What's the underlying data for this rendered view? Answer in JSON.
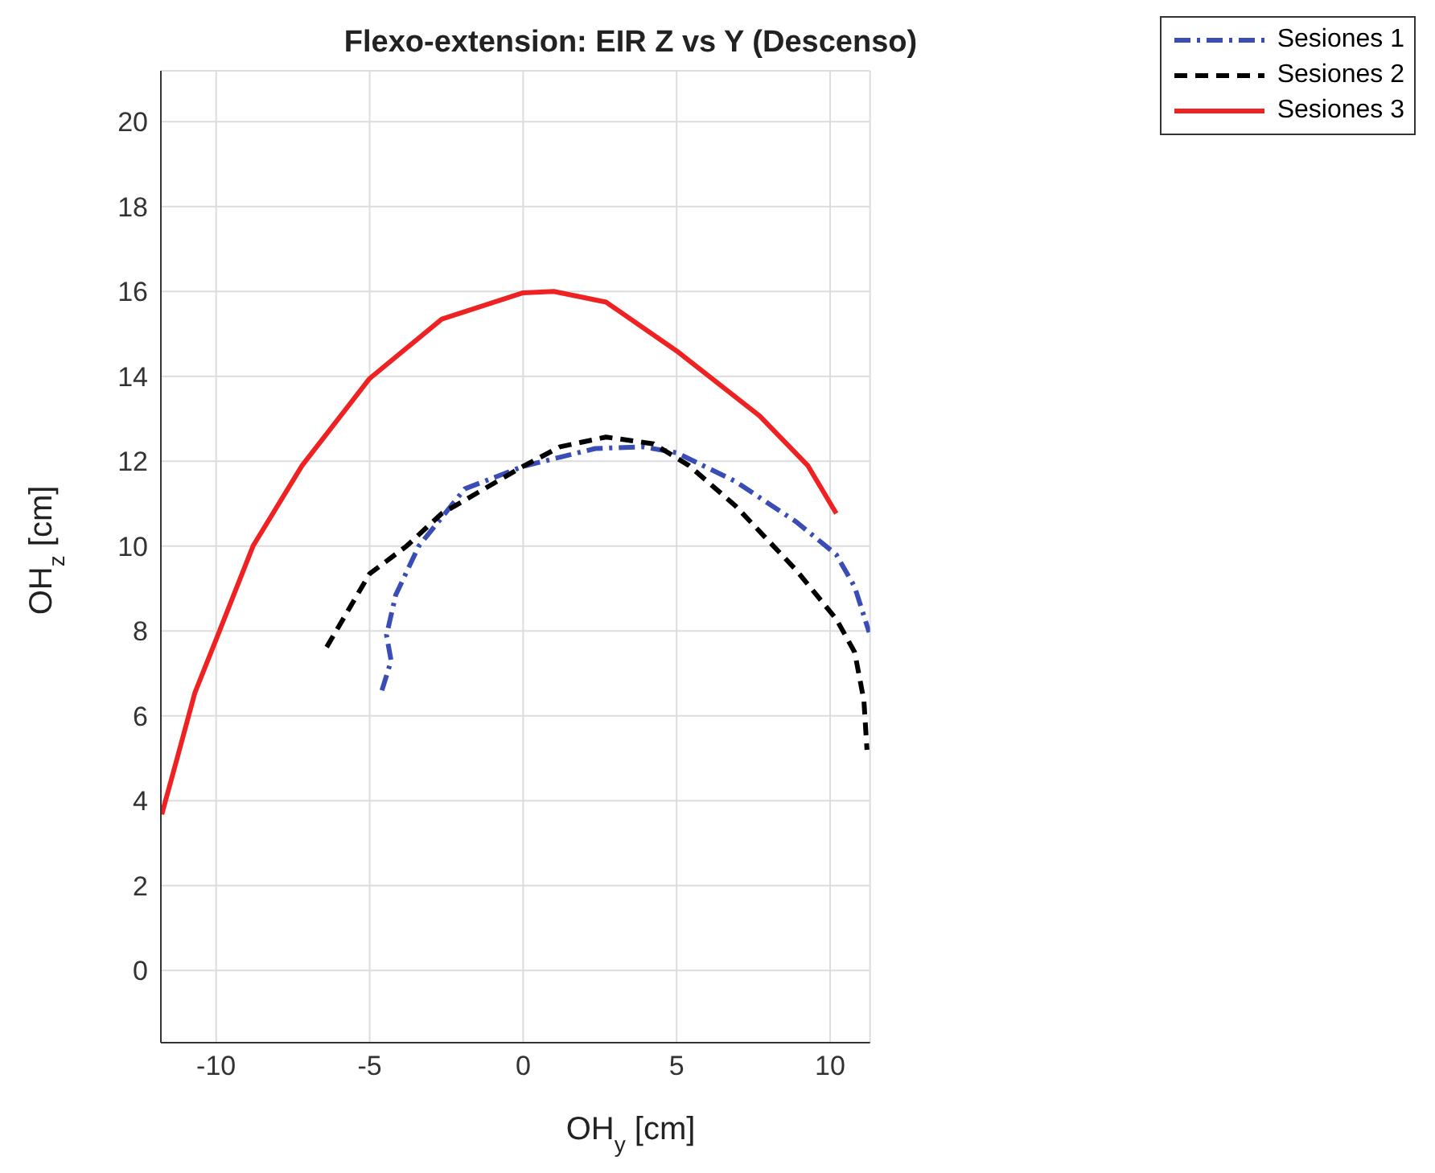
{
  "chart_data": {
    "type": "line",
    "title": "Flexo-extension: EIR Z vs Y (Descenso)",
    "xlabel": "OH$_{y}$ [cm]",
    "ylabel": "OH$_{z}$ [cm]",
    "xlim": [
      -11.8,
      11.3
    ],
    "ylim": [
      -1.7,
      21.2
    ],
    "xticks": [
      -10,
      -5,
      0,
      5,
      10
    ],
    "yticks": [
      0,
      2,
      4,
      6,
      8,
      10,
      12,
      14,
      16,
      18,
      20
    ],
    "grid": true,
    "legend": "top right",
    "marker": "none",
    "series": [
      {
        "name": "Sesiones 1",
        "color": "#3a4db5",
        "line_style": "dashdot",
        "x": [
          -4.6,
          -4.3,
          -4.45,
          -4.15,
          -3.4,
          -1.9,
          0,
          2.35,
          3.9,
          5.0,
          6.9,
          8.9,
          10.2,
          10.8,
          11.27
        ],
        "values": [
          6.6,
          7.3,
          7.9,
          8.85,
          10.0,
          11.35,
          11.88,
          12.3,
          12.34,
          12.2,
          11.53,
          10.57,
          9.8,
          9.04,
          7.97
        ]
      },
      {
        "name": "Sesiones 2",
        "color": "#000000",
        "line_style": "dashed",
        "x": [
          -6.4,
          -5,
          -3.8,
          -2.65,
          0,
          1.2,
          2.7,
          4.25,
          5.4,
          6.9,
          8.9,
          10.2,
          10.8,
          11.1,
          11.2
        ],
        "values": [
          7.62,
          9.35,
          10.0,
          10.77,
          11.88,
          12.34,
          12.57,
          12.41,
          11.9,
          10.96,
          9.43,
          8.28,
          7.5,
          6.36,
          5.2
        ]
      },
      {
        "name": "Sesiones 3",
        "color": "#ee2222",
        "line_style": "solid",
        "x": [
          -11.77,
          -11.27,
          -10.69,
          -10,
          -8.8,
          -7.2,
          -5,
          -2.65,
          0,
          1,
          2.7,
          5,
          7.7,
          9.27,
          10.2
        ],
        "values": [
          3.68,
          5.0,
          6.55,
          7.8,
          10.0,
          11.9,
          13.95,
          15.35,
          15.97,
          16.0,
          15.75,
          14.6,
          13.07,
          11.9,
          10.77
        ]
      }
    ]
  }
}
